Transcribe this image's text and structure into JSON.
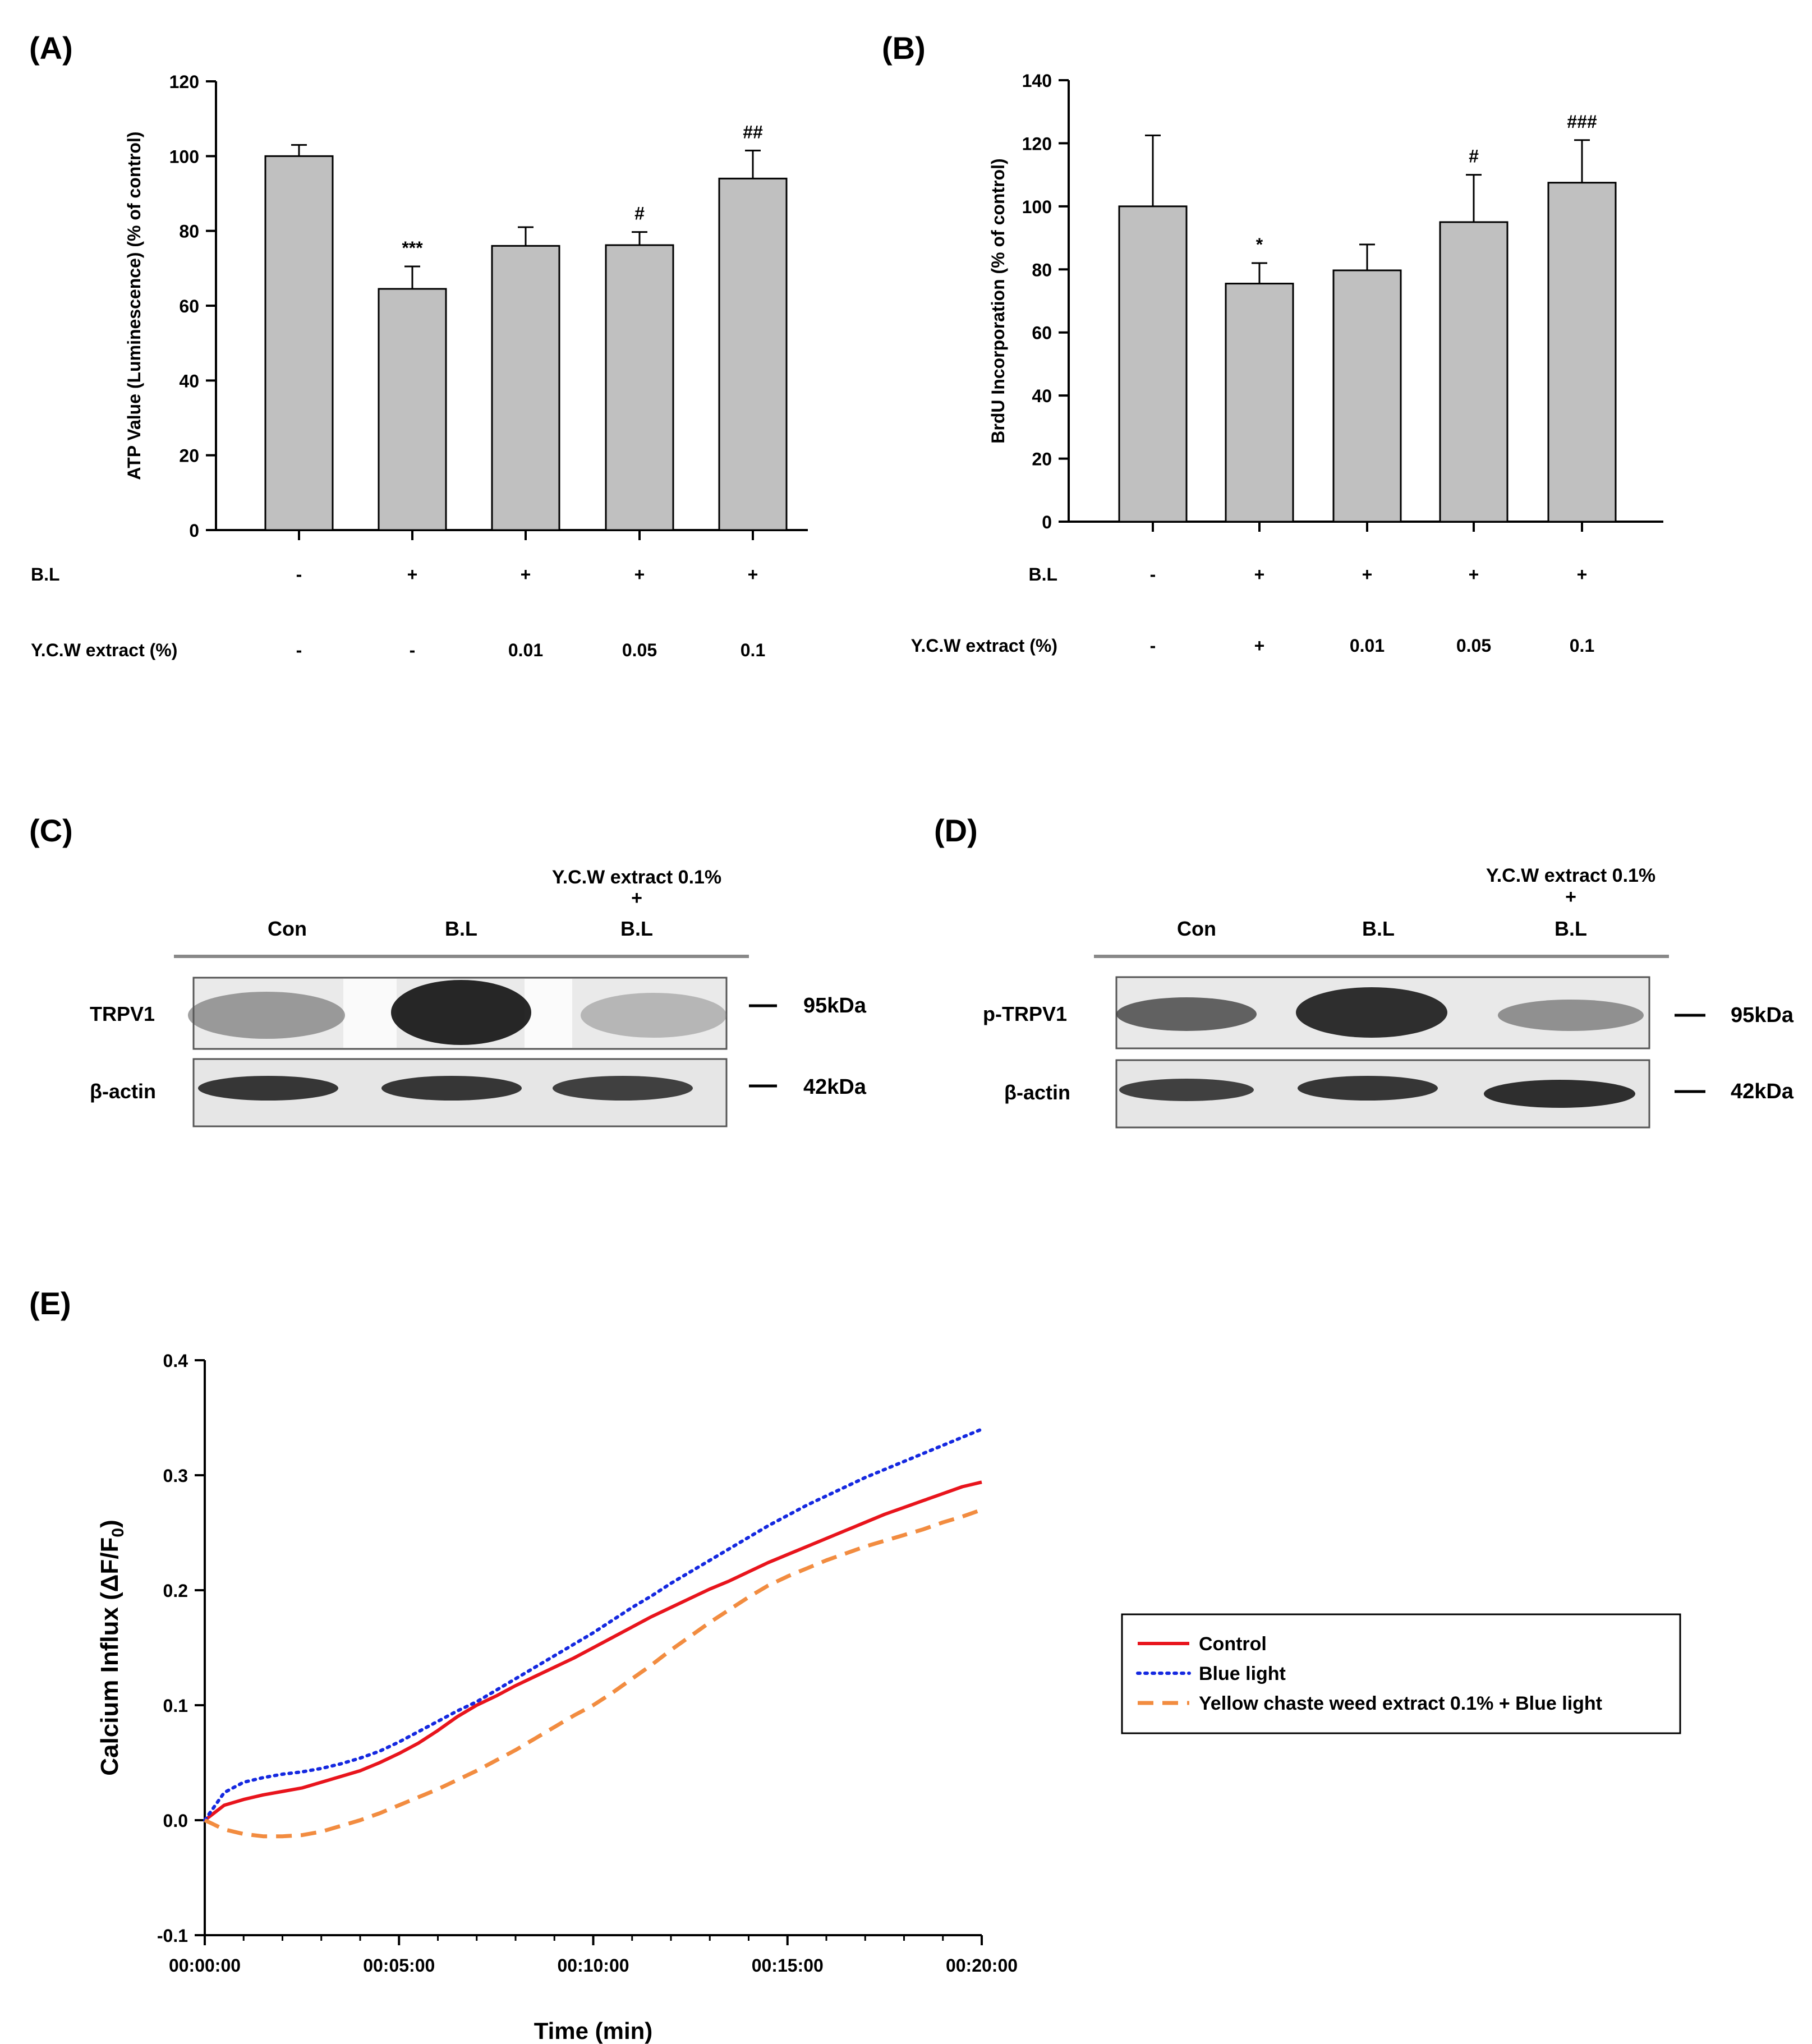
{
  "chart_data": [
    {
      "panel": "(A)",
      "type": "bar",
      "ylabel": "ATP Value (Luminescence) (% of control)",
      "ylim": [
        0,
        120
      ],
      "yticks": [
        0,
        20,
        40,
        60,
        80,
        100,
        120
      ],
      "values": [
        100,
        64.5,
        76,
        76.2,
        94
      ],
      "errors": [
        3,
        6,
        5,
        3.5,
        7.5
      ],
      "annotations": [
        "",
        "***",
        "",
        "#",
        "##"
      ],
      "conditions": [
        {
          "name": "B.L",
          "values": [
            "-",
            "+",
            "+",
            "+",
            "+"
          ]
        },
        {
          "name": "Y.C.W extract (%)",
          "values": [
            "-",
            "-",
            "0.01",
            "0.05",
            "0.1"
          ]
        }
      ]
    },
    {
      "panel": "(B)",
      "type": "bar",
      "ylabel": "BrdU Incorporation (% of control)",
      "ylim": [
        0,
        140
      ],
      "yticks": [
        0,
        20,
        40,
        60,
        80,
        100,
        120,
        140
      ],
      "values": [
        100,
        75.5,
        79.7,
        95,
        107.5
      ],
      "errors": [
        22.5,
        6.5,
        8.2,
        15,
        13.5
      ],
      "annotations": [
        "",
        "*",
        "",
        "#",
        "###"
      ],
      "conditions": [
        {
          "name": "B.L",
          "values": [
            "-",
            "+",
            "+",
            "+",
            "+"
          ]
        },
        {
          "name": "Y.C.W extract (%)",
          "values": [
            "-",
            "+",
            "0.01",
            "0.05",
            "0.1"
          ]
        }
      ]
    },
    {
      "panel": "(E)",
      "type": "line",
      "ylabel_main": "Calcium Influx (",
      "ylabel_ratio": "ΔF/F",
      "ylabel_sub": "0",
      "ylabel_end": ")",
      "xlabel": "Time (min)",
      "ylim": [
        -0.1,
        0.4
      ],
      "yticks": [
        "-0.1",
        "0.0",
        "0.1",
        "0.2",
        "0.3",
        "0.4"
      ],
      "xlim": [
        0,
        20
      ],
      "xticks": [
        0,
        5,
        10,
        15,
        20
      ],
      "xtick_labels": [
        "00:00:00",
        "00:05:00",
        "00:10:00",
        "00:15:00",
        "00:20:00"
      ],
      "x": [
        0,
        0.5,
        1,
        1.5,
        2,
        2.5,
        3,
        3.5,
        4,
        4.5,
        5,
        5.5,
        6,
        6.5,
        7,
        7.5,
        8,
        8.5,
        9,
        9.5,
        10,
        10.5,
        11,
        11.5,
        12,
        12.5,
        13,
        13.5,
        14,
        14.5,
        15,
        15.5,
        16,
        16.5,
        17,
        17.5,
        18,
        18.5,
        19,
        19.5,
        20
      ],
      "series": [
        {
          "name": "Control",
          "color": "#e8141c",
          "style": "solid",
          "values": [
            0,
            0.013,
            0.018,
            0.022,
            0.025,
            0.028,
            0.033,
            0.038,
            0.043,
            0.05,
            0.058,
            0.067,
            0.078,
            0.09,
            0.1,
            0.108,
            0.117,
            0.125,
            0.133,
            0.141,
            0.15,
            0.159,
            0.168,
            0.177,
            0.185,
            0.193,
            0.201,
            0.208,
            0.216,
            0.224,
            0.231,
            0.238,
            0.245,
            0.252,
            0.259,
            0.266,
            0.272,
            0.278,
            0.284,
            0.29,
            0.294
          ]
        },
        {
          "name": "Blue light",
          "color": "#1428e0",
          "style": "dotted",
          "values": [
            0,
            0.024,
            0.033,
            0.037,
            0.04,
            0.042,
            0.045,
            0.049,
            0.054,
            0.06,
            0.068,
            0.077,
            0.086,
            0.095,
            0.103,
            0.113,
            0.123,
            0.133,
            0.143,
            0.153,
            0.163,
            0.174,
            0.185,
            0.195,
            0.206,
            0.216,
            0.226,
            0.236,
            0.246,
            0.256,
            0.265,
            0.274,
            0.282,
            0.29,
            0.298,
            0.305,
            0.312,
            0.319,
            0.326,
            0.333,
            0.34
          ]
        },
        {
          "name": "Yellow chaste weed extract 0.1% + Blue light",
          "color": "#f28c40",
          "style": "dashed",
          "values": [
            0,
            -0.008,
            -0.012,
            -0.014,
            -0.014,
            -0.013,
            -0.01,
            -0.005,
            0,
            0.006,
            0.013,
            0.02,
            0.027,
            0.035,
            0.043,
            0.052,
            0.061,
            0.071,
            0.081,
            0.091,
            0.1,
            0.111,
            0.123,
            0.135,
            0.148,
            0.16,
            0.172,
            0.183,
            0.194,
            0.204,
            0.212,
            0.219,
            0.226,
            0.232,
            0.238,
            0.243,
            0.248,
            0.253,
            0.259,
            0.264,
            0.27
          ]
        }
      ]
    }
  ],
  "panels": {
    "a": {
      "label": "(A)"
    },
    "b": {
      "label": "(B)"
    },
    "c": {
      "label": "(C)",
      "lanes": [
        "Con",
        "B.L",
        "B.L"
      ],
      "lane3_extra": [
        "Y.C.W extract 0.1%",
        "+"
      ],
      "rows": [
        {
          "protein": "TRPV1",
          "size": "95kDa"
        },
        {
          "protein": "β-actin",
          "size": "42kDa"
        }
      ]
    },
    "d": {
      "label": "(D)",
      "lanes": [
        "Con",
        "B.L",
        "B.L"
      ],
      "lane3_extra": [
        "Y.C.W extract 0.1%",
        "+"
      ],
      "rows": [
        {
          "protein": "p-TRPV1",
          "size": "95kDa"
        },
        {
          "protein": "β-actin",
          "size": "42kDa"
        }
      ]
    },
    "e": {
      "label": "(E)"
    }
  },
  "colors": {
    "bar_fill": "#c0c0c0",
    "axis": "#000000"
  }
}
